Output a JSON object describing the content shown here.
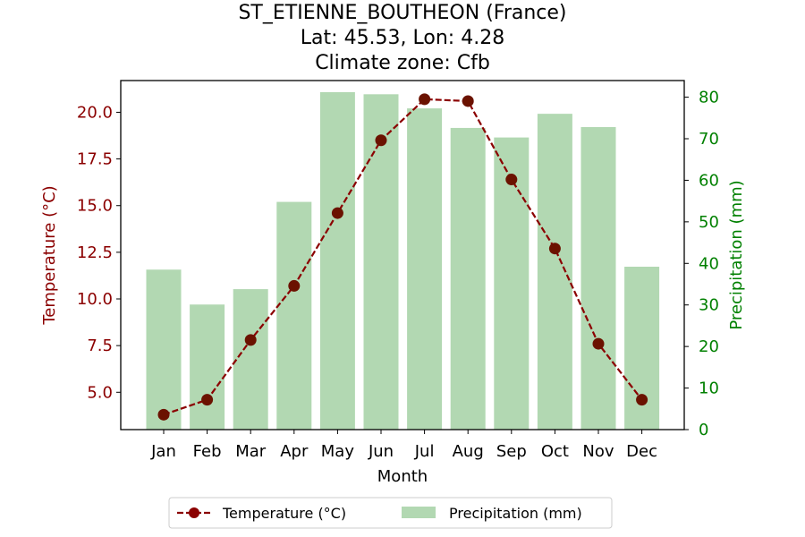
{
  "chart_data": {
    "type": "bar+line",
    "title": [
      "ST_ETIENNE_BOUTHEON (France)",
      "Lat: 45.53, Lon: 4.28",
      "Climate zone: Cfb"
    ],
    "xlabel": "Month",
    "ylabel_left": "Temperature (°C)",
    "ylabel_right": "Precipitation (mm)",
    "categories": [
      "Jan",
      "Feb",
      "Mar",
      "Apr",
      "May",
      "Jun",
      "Jul",
      "Aug",
      "Sep",
      "Oct",
      "Nov",
      "Dec"
    ],
    "temperature": {
      "name": "Temperature (°C)",
      "values": [
        3.8,
        4.6,
        7.8,
        10.7,
        14.6,
        18.5,
        20.7,
        20.6,
        16.4,
        12.7,
        7.6,
        4.6
      ],
      "color": "#8b0000",
      "ylim": [
        3.0,
        21.7
      ],
      "ticks": [
        "5.0",
        "7.5",
        "10.0",
        "12.5",
        "15.0",
        "17.5",
        "20.0"
      ]
    },
    "precipitation": {
      "name": "Precipitation (mm)",
      "values": [
        38.5,
        30.1,
        33.8,
        54.8,
        81.2,
        80.7,
        77.3,
        72.6,
        70.3,
        76.0,
        72.8,
        39.2
      ],
      "color": "#b2d8b2",
      "ylim": [
        0,
        84
      ],
      "ticks": [
        "0",
        "10",
        "20",
        "30",
        "40",
        "50",
        "60",
        "70",
        "80"
      ]
    },
    "tick_color_left": "#8b0000",
    "tick_color_right": "#008000",
    "legend_placement": "bottom-center",
    "grid": false
  }
}
